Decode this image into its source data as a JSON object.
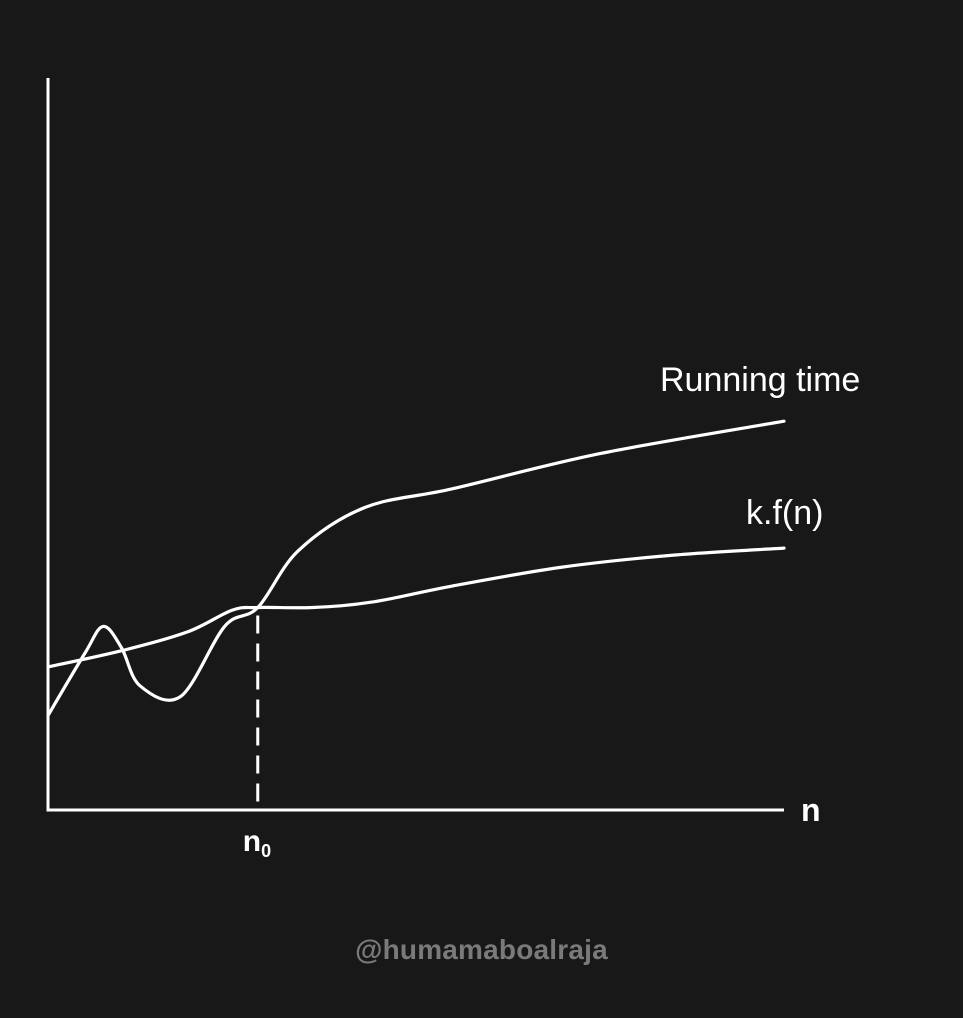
{
  "chart_data": {
    "type": "line",
    "title": "",
    "xlabel": "n",
    "ylabel": "",
    "x_annotation": {
      "label": "n",
      "subscript": "0",
      "x": 2.85
    },
    "xlim": [
      0,
      10
    ],
    "ylim": [
      0,
      10
    ],
    "grid": false,
    "legend": "inline",
    "series": [
      {
        "name": "Running time",
        "points": [
          [
            0,
            1.75
          ],
          [
            0.5,
            2.9
          ],
          [
            0.75,
            3.4
          ],
          [
            1.0,
            3.0
          ],
          [
            1.25,
            2.3
          ],
          [
            1.8,
            2.1
          ],
          [
            2.4,
            3.4
          ],
          [
            2.85,
            3.75
          ],
          [
            3.4,
            4.8
          ],
          [
            4.3,
            5.6
          ],
          [
            5.5,
            5.95
          ],
          [
            7.5,
            6.6
          ],
          [
            10,
            7.2
          ]
        ]
      },
      {
        "name": "k.f(n)",
        "points": [
          [
            0,
            2.65
          ],
          [
            1.0,
            2.95
          ],
          [
            1.9,
            3.3
          ],
          [
            2.5,
            3.7
          ],
          [
            2.85,
            3.75
          ],
          [
            3.6,
            3.75
          ],
          [
            4.4,
            3.85
          ],
          [
            5.5,
            4.15
          ],
          [
            7.0,
            4.5
          ],
          [
            8.5,
            4.72
          ],
          [
            10,
            4.85
          ]
        ]
      }
    ]
  },
  "watermark": "@humamaboalraja",
  "colors": {
    "background": "#181818",
    "stroke": "#ffffff",
    "watermark": "#7a7a7a"
  }
}
